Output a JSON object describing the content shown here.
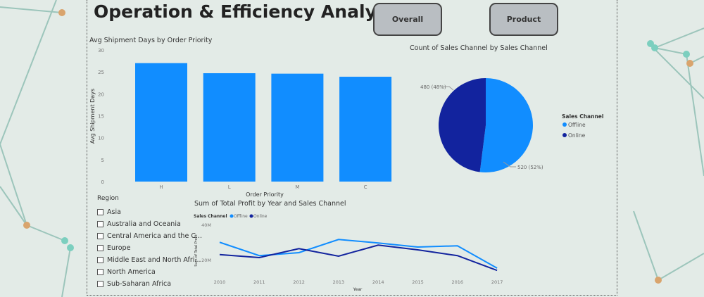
{
  "header": {
    "title": "Operation & Efficiency Analysis",
    "buttons": [
      "Overall",
      "Product"
    ]
  },
  "colors": {
    "offline": "#118dff",
    "online": "#12239e",
    "background": "#e3ebe7"
  },
  "slicer": {
    "title": "Region",
    "items": [
      "Asia",
      "Australia and Oceania",
      "Central America and the C...",
      "Europe",
      "Middle East and North Afri...",
      "North America",
      "Sub-Saharan Africa"
    ]
  },
  "chart_data": [
    {
      "type": "bar",
      "title": "Avg Shipment Days by Order Priority",
      "xlabel": "Order Priority",
      "ylabel": "Avg Shipment Days",
      "categories": [
        "H",
        "L",
        "M",
        "C"
      ],
      "values": [
        27.0,
        24.7,
        24.6,
        23.9
      ],
      "ylim": [
        0,
        30
      ],
      "yticks": [
        "0",
        "5",
        "10",
        "15",
        "20",
        "25",
        "30"
      ]
    },
    {
      "type": "pie",
      "title": "Count of Sales Channel by Sales Channel",
      "legend_title": "Sales Channel",
      "legend_position": "right",
      "slices": [
        {
          "name": "Offline",
          "value": 520,
          "label": "520 (52%)"
        },
        {
          "name": "Online",
          "value": 480,
          "label": "480 (48%)"
        }
      ]
    },
    {
      "type": "line",
      "title": "Sum of Total Profit by Year and Sales Channel",
      "xlabel": "Year",
      "ylabel": "Sum of Total Profit",
      "legend_title": "Sales Channel",
      "legend_position": "top-left",
      "x": [
        "2010",
        "2011",
        "2012",
        "2013",
        "2014",
        "2015",
        "2016",
        "2017"
      ],
      "yticks": [
        "20M",
        "40M"
      ],
      "series": [
        {
          "name": "Offline",
          "values": [
            29.9,
            22.3,
            24.0,
            31.5,
            29.5,
            27.2,
            27.9,
            15.2
          ]
        },
        {
          "name": "Online",
          "values": [
            22.9,
            21.2,
            26.3,
            22.0,
            28.3,
            25.6,
            22.3,
            13.9
          ]
        }
      ]
    }
  ]
}
